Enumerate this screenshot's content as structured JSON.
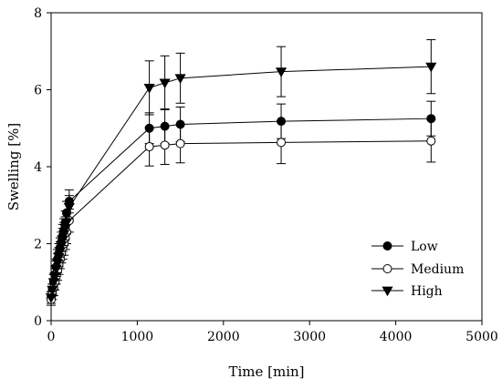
{
  "chart_data": {
    "type": "line",
    "title": "",
    "xlabel": "Time [min]",
    "ylabel": "Swelling [%]",
    "xlim": [
      0,
      5000
    ],
    "ylim": [
      0,
      8
    ],
    "xticks": [
      0,
      1000,
      2000,
      3000,
      4000,
      5000
    ],
    "yticks": [
      0,
      2,
      4,
      6,
      8
    ],
    "grid": false,
    "legend_position": "bottom-right",
    "series": [
      {
        "name": "Low",
        "marker": "circle-filled",
        "x": [
          0,
          15,
          30,
          45,
          60,
          75,
          90,
          105,
          120,
          135,
          150,
          165,
          180,
          210,
          1140,
          1320,
          1500,
          2670,
          4410
        ],
        "y": [
          0.6,
          0.8,
          1.0,
          1.2,
          1.4,
          1.6,
          1.75,
          1.9,
          2.05,
          2.2,
          2.35,
          2.55,
          2.8,
          3.1,
          5.0,
          5.05,
          5.1,
          5.18,
          5.25
        ],
        "err": [
          0.15,
          0.15,
          0.2,
          0.2,
          0.2,
          0.25,
          0.25,
          0.25,
          0.25,
          0.3,
          0.3,
          0.3,
          0.3,
          0.3,
          0.4,
          0.45,
          0.45,
          0.45,
          0.45
        ]
      },
      {
        "name": "Medium",
        "marker": "circle-open",
        "x": [
          0,
          15,
          30,
          45,
          60,
          75,
          90,
          105,
          120,
          135,
          150,
          165,
          180,
          210,
          1140,
          1320,
          1500,
          2670,
          4410
        ],
        "y": [
          0.55,
          0.7,
          0.85,
          1.0,
          1.15,
          1.3,
          1.45,
          1.6,
          1.75,
          1.9,
          2.0,
          2.15,
          2.3,
          2.6,
          4.52,
          4.56,
          4.6,
          4.63,
          4.67
        ],
        "err": [
          0.15,
          0.15,
          0.2,
          0.2,
          0.2,
          0.25,
          0.25,
          0.25,
          0.25,
          0.3,
          0.3,
          0.3,
          0.3,
          0.3,
          0.5,
          0.5,
          0.5,
          0.55,
          0.55
        ]
      },
      {
        "name": "High",
        "marker": "triangle-down-filled",
        "x": [
          0,
          15,
          30,
          45,
          60,
          75,
          90,
          105,
          120,
          135,
          150,
          165,
          180,
          210,
          1140,
          1320,
          1500,
          2670,
          4410
        ],
        "y": [
          0.6,
          0.8,
          1.0,
          1.15,
          1.35,
          1.5,
          1.65,
          1.8,
          1.95,
          2.1,
          2.25,
          2.4,
          2.55,
          2.95,
          6.05,
          6.18,
          6.3,
          6.47,
          6.6
        ],
        "err": [
          0.15,
          0.15,
          0.2,
          0.2,
          0.2,
          0.25,
          0.25,
          0.25,
          0.25,
          0.3,
          0.3,
          0.3,
          0.3,
          0.3,
          0.7,
          0.7,
          0.65,
          0.65,
          0.7
        ]
      }
    ]
  }
}
